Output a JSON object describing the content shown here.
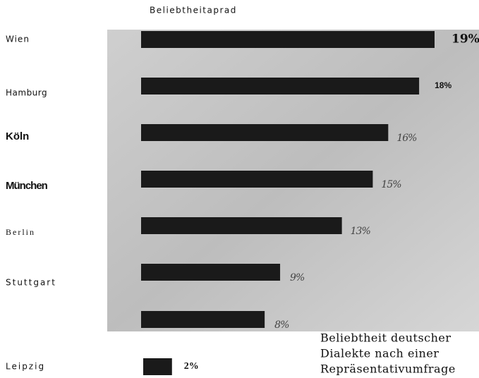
{
  "chart_data": {
    "type": "bar",
    "orientation": "horizontal",
    "title": "Beliebtheitaprad",
    "categories": [
      "Wien",
      "Hamburg",
      "Köln",
      "München",
      "Berlin",
      "Stuttgart",
      null,
      "Leipzig"
    ],
    "values": [
      19,
      18,
      16,
      15,
      13,
      9,
      8,
      2
    ],
    "value_labels": [
      "19%",
      "18%",
      "16%",
      "15%",
      "13%",
      "9%",
      "8%",
      "2%"
    ],
    "color": "#1a1a1a",
    "annotation": [
      "Beliebtheit deutscher",
      "Dialekte nach einer",
      "Repräsentativumfrage"
    ]
  }
}
